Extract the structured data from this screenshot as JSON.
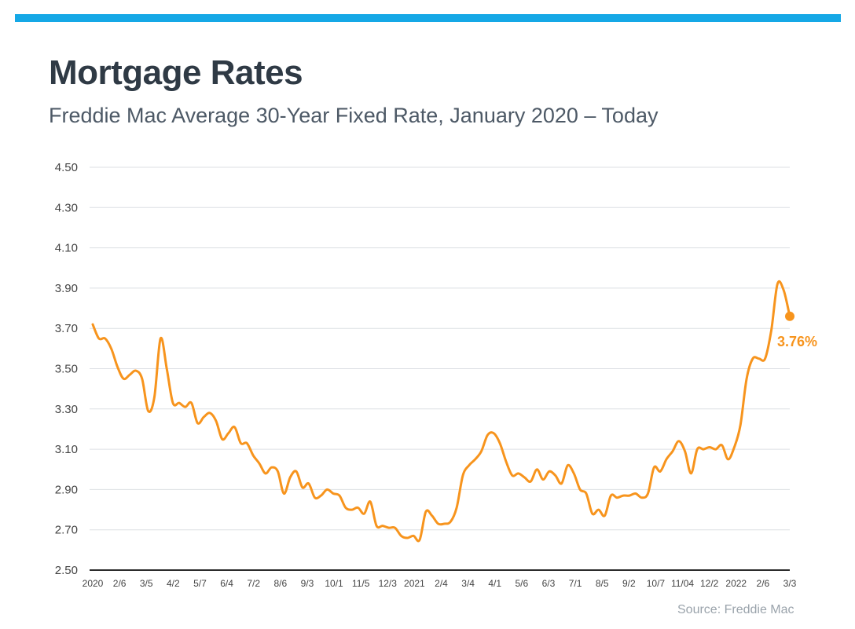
{
  "header": {
    "title": "Mortgage Rates",
    "subtitle": "Freddie Mac Average 30-Year Fixed Rate, January 2020 – Today",
    "bar_color": "#15a8e6"
  },
  "footer": {
    "source": "Source: Freddie Mac"
  },
  "colors": {
    "line": "#f7941d",
    "grid": "#dcdfe3",
    "axis": "#2b2b2b",
    "tick_text": "#444444"
  },
  "chart_data": {
    "type": "line",
    "title": "Mortgage Rates",
    "subtitle": "Freddie Mac Average 30-Year Fixed Rate, January 2020 – Today",
    "xlabel": "",
    "ylabel": "",
    "ylim": [
      2.5,
      4.5
    ],
    "y_ticks": [
      "4.50",
      "4.30",
      "4.10",
      "3.90",
      "3.70",
      "3.50",
      "3.30",
      "3.10",
      "2.90",
      "2.70",
      "2.50"
    ],
    "x_tick_labels": [
      "2020",
      "2/6",
      "3/5",
      "4/2",
      "5/7",
      "6/4",
      "7/2",
      "8/6",
      "9/3",
      "10/1",
      "11/5",
      "12/3",
      "2021",
      "2/4",
      "3/4",
      "4/1",
      "5/6",
      "6/3",
      "7/1",
      "8/5",
      "9/2",
      "10/7",
      "11/04",
      "12/2",
      "2022",
      "2/6",
      "3/3"
    ],
    "grid": "horizontal",
    "legend": "none",
    "series": [
      {
        "values": [
          3.72,
          3.65,
          3.65,
          3.6,
          3.51,
          3.45,
          3.47,
          3.49,
          3.45,
          3.29,
          3.36,
          3.65,
          3.5,
          3.33,
          3.33,
          3.31,
          3.33,
          3.23,
          3.26,
          3.28,
          3.24,
          3.15,
          3.18,
          3.21,
          3.13,
          3.13,
          3.07,
          3.03,
          2.98,
          3.01,
          2.99,
          2.88,
          2.96,
          2.99,
          2.91,
          2.93,
          2.86,
          2.87,
          2.9,
          2.88,
          2.87,
          2.81,
          2.8,
          2.81,
          2.78,
          2.84,
          2.72,
          2.72,
          2.71,
          2.71,
          2.67,
          2.66,
          2.67,
          2.65,
          2.79,
          2.77,
          2.73,
          2.73,
          2.74,
          2.81,
          2.97,
          3.02,
          3.05,
          3.09,
          3.17,
          3.18,
          3.13,
          3.04,
          2.97,
          2.98,
          2.96,
          2.94,
          3.0,
          2.95,
          2.99,
          2.97,
          2.93,
          3.02,
          2.98,
          2.9,
          2.88,
          2.78,
          2.8,
          2.77,
          2.87,
          2.86,
          2.87,
          2.87,
          2.88,
          2.86,
          2.88,
          3.01,
          2.99,
          3.05,
          3.09,
          3.14,
          3.09,
          2.98,
          3.1,
          3.1,
          3.11,
          3.1,
          3.12,
          3.05,
          3.11,
          3.22,
          3.45,
          3.55,
          3.55,
          3.55,
          3.69,
          3.92,
          3.89,
          3.76
        ],
        "last_value_label": "3.76%"
      }
    ]
  }
}
